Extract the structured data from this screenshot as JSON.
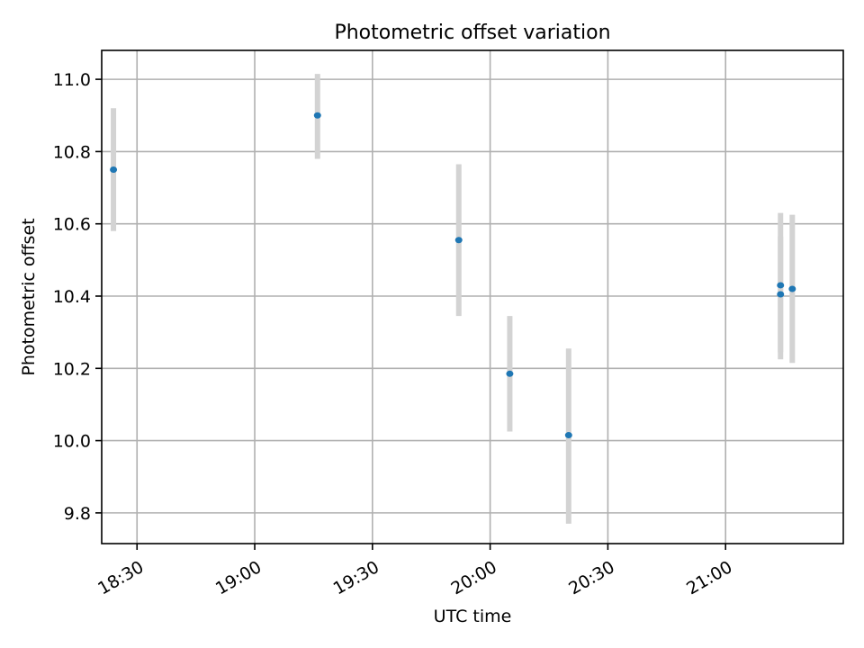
{
  "chart_data": {
    "type": "scatter",
    "title": "Photometric offset variation",
    "xlabel": "UTC time",
    "ylabel": "Photometric offset",
    "x_axis": {
      "kind": "time",
      "range": [
        "18:21",
        "21:30"
      ],
      "ticks": [
        "18:30",
        "19:00",
        "19:30",
        "20:00",
        "20:30",
        "21:00"
      ]
    },
    "y_axis": {
      "range": [
        9.715,
        11.08
      ],
      "ticks": [
        9.8,
        10.0,
        10.2,
        10.4,
        10.6,
        10.8,
        11.0
      ],
      "tick_labels": [
        "9.8",
        "10.0",
        "10.2",
        "10.4",
        "10.6",
        "10.8",
        "11.0"
      ]
    },
    "grid": true,
    "points": [
      {
        "x": "18:24",
        "y": 10.75,
        "ylow": 10.58,
        "yhigh": 10.92
      },
      {
        "x": "19:16",
        "y": 10.9,
        "ylow": 10.78,
        "yhigh": 11.015
      },
      {
        "x": "19:52",
        "y": 10.555,
        "ylow": 10.345,
        "yhigh": 10.765
      },
      {
        "x": "20:05",
        "y": 10.185,
        "ylow": 10.025,
        "yhigh": 10.345
      },
      {
        "x": "20:20",
        "y": 10.015,
        "ylow": 9.77,
        "yhigh": 10.255
      },
      {
        "x": "21:14",
        "y": 10.43,
        "ylow": 10.225,
        "yhigh": 10.63
      },
      {
        "x": "21:14",
        "y": 10.405,
        "ylow": 10.245,
        "yhigh": 10.565
      },
      {
        "x": "21:17",
        "y": 10.42,
        "ylow": 10.215,
        "yhigh": 10.625
      }
    ],
    "colors": {
      "point": "#1f77b4",
      "errorbar": "#d3d3d3",
      "grid": "#b0b0b0"
    }
  }
}
